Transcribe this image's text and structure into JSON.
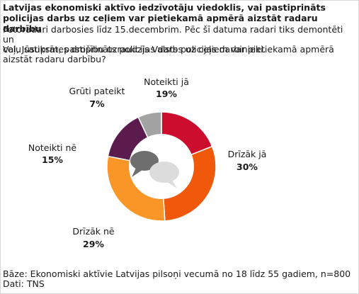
{
  "chart_data": {
    "type": "pie",
    "title": "Latvijas ekonomiski aktīvo iedzīvotāju viedoklis, vai pastiprināts policijas darbs uz ceļiem var pietiekamā apmērā aizstāt radaru darbību",
    "subtitle_lines": [
      "Fotoradari darbosies līdz 15.decembrim. Pēc šī datuma radari tiks demontēti un",
      "ceļu satiksmes drošību uzraudzīs Valsts policijas darbinieki."
    ],
    "question_lines": [
      "Vai, Jūsuprāt, pastiprināts policijas darbs uz ceļiem var pietiekamā apmērā",
      "aizstāt radaru darbību?"
    ],
    "slices": [
      {
        "label": "Noteikti jā",
        "value": 19,
        "value_label": "19%",
        "color": "#cc0d2d"
      },
      {
        "label": "Drīzāk jā",
        "value": 30,
        "value_label": "30%",
        "color": "#f0580a"
      },
      {
        "label": "Drīzāk nē",
        "value": 29,
        "value_label": "29%",
        "color": "#fa9628"
      },
      {
        "label": "Noteikti nē",
        "value": 15,
        "value_label": "15%",
        "color": "#5b1b4d"
      },
      {
        "label": "Grūti pateikt",
        "value": 7,
        "value_label": "7%",
        "color": "#a3a3a3"
      }
    ],
    "start_angle_deg": 0,
    "donut": true
  },
  "center_icon": "speech-bubbles-icon",
  "footer": {
    "base": "Bāze: Ekonomiski aktīvie Latvijas pilsoņi vecumā no 18 līdz 55 gadiem, n=800",
    "source": "Dati: TNS"
  }
}
